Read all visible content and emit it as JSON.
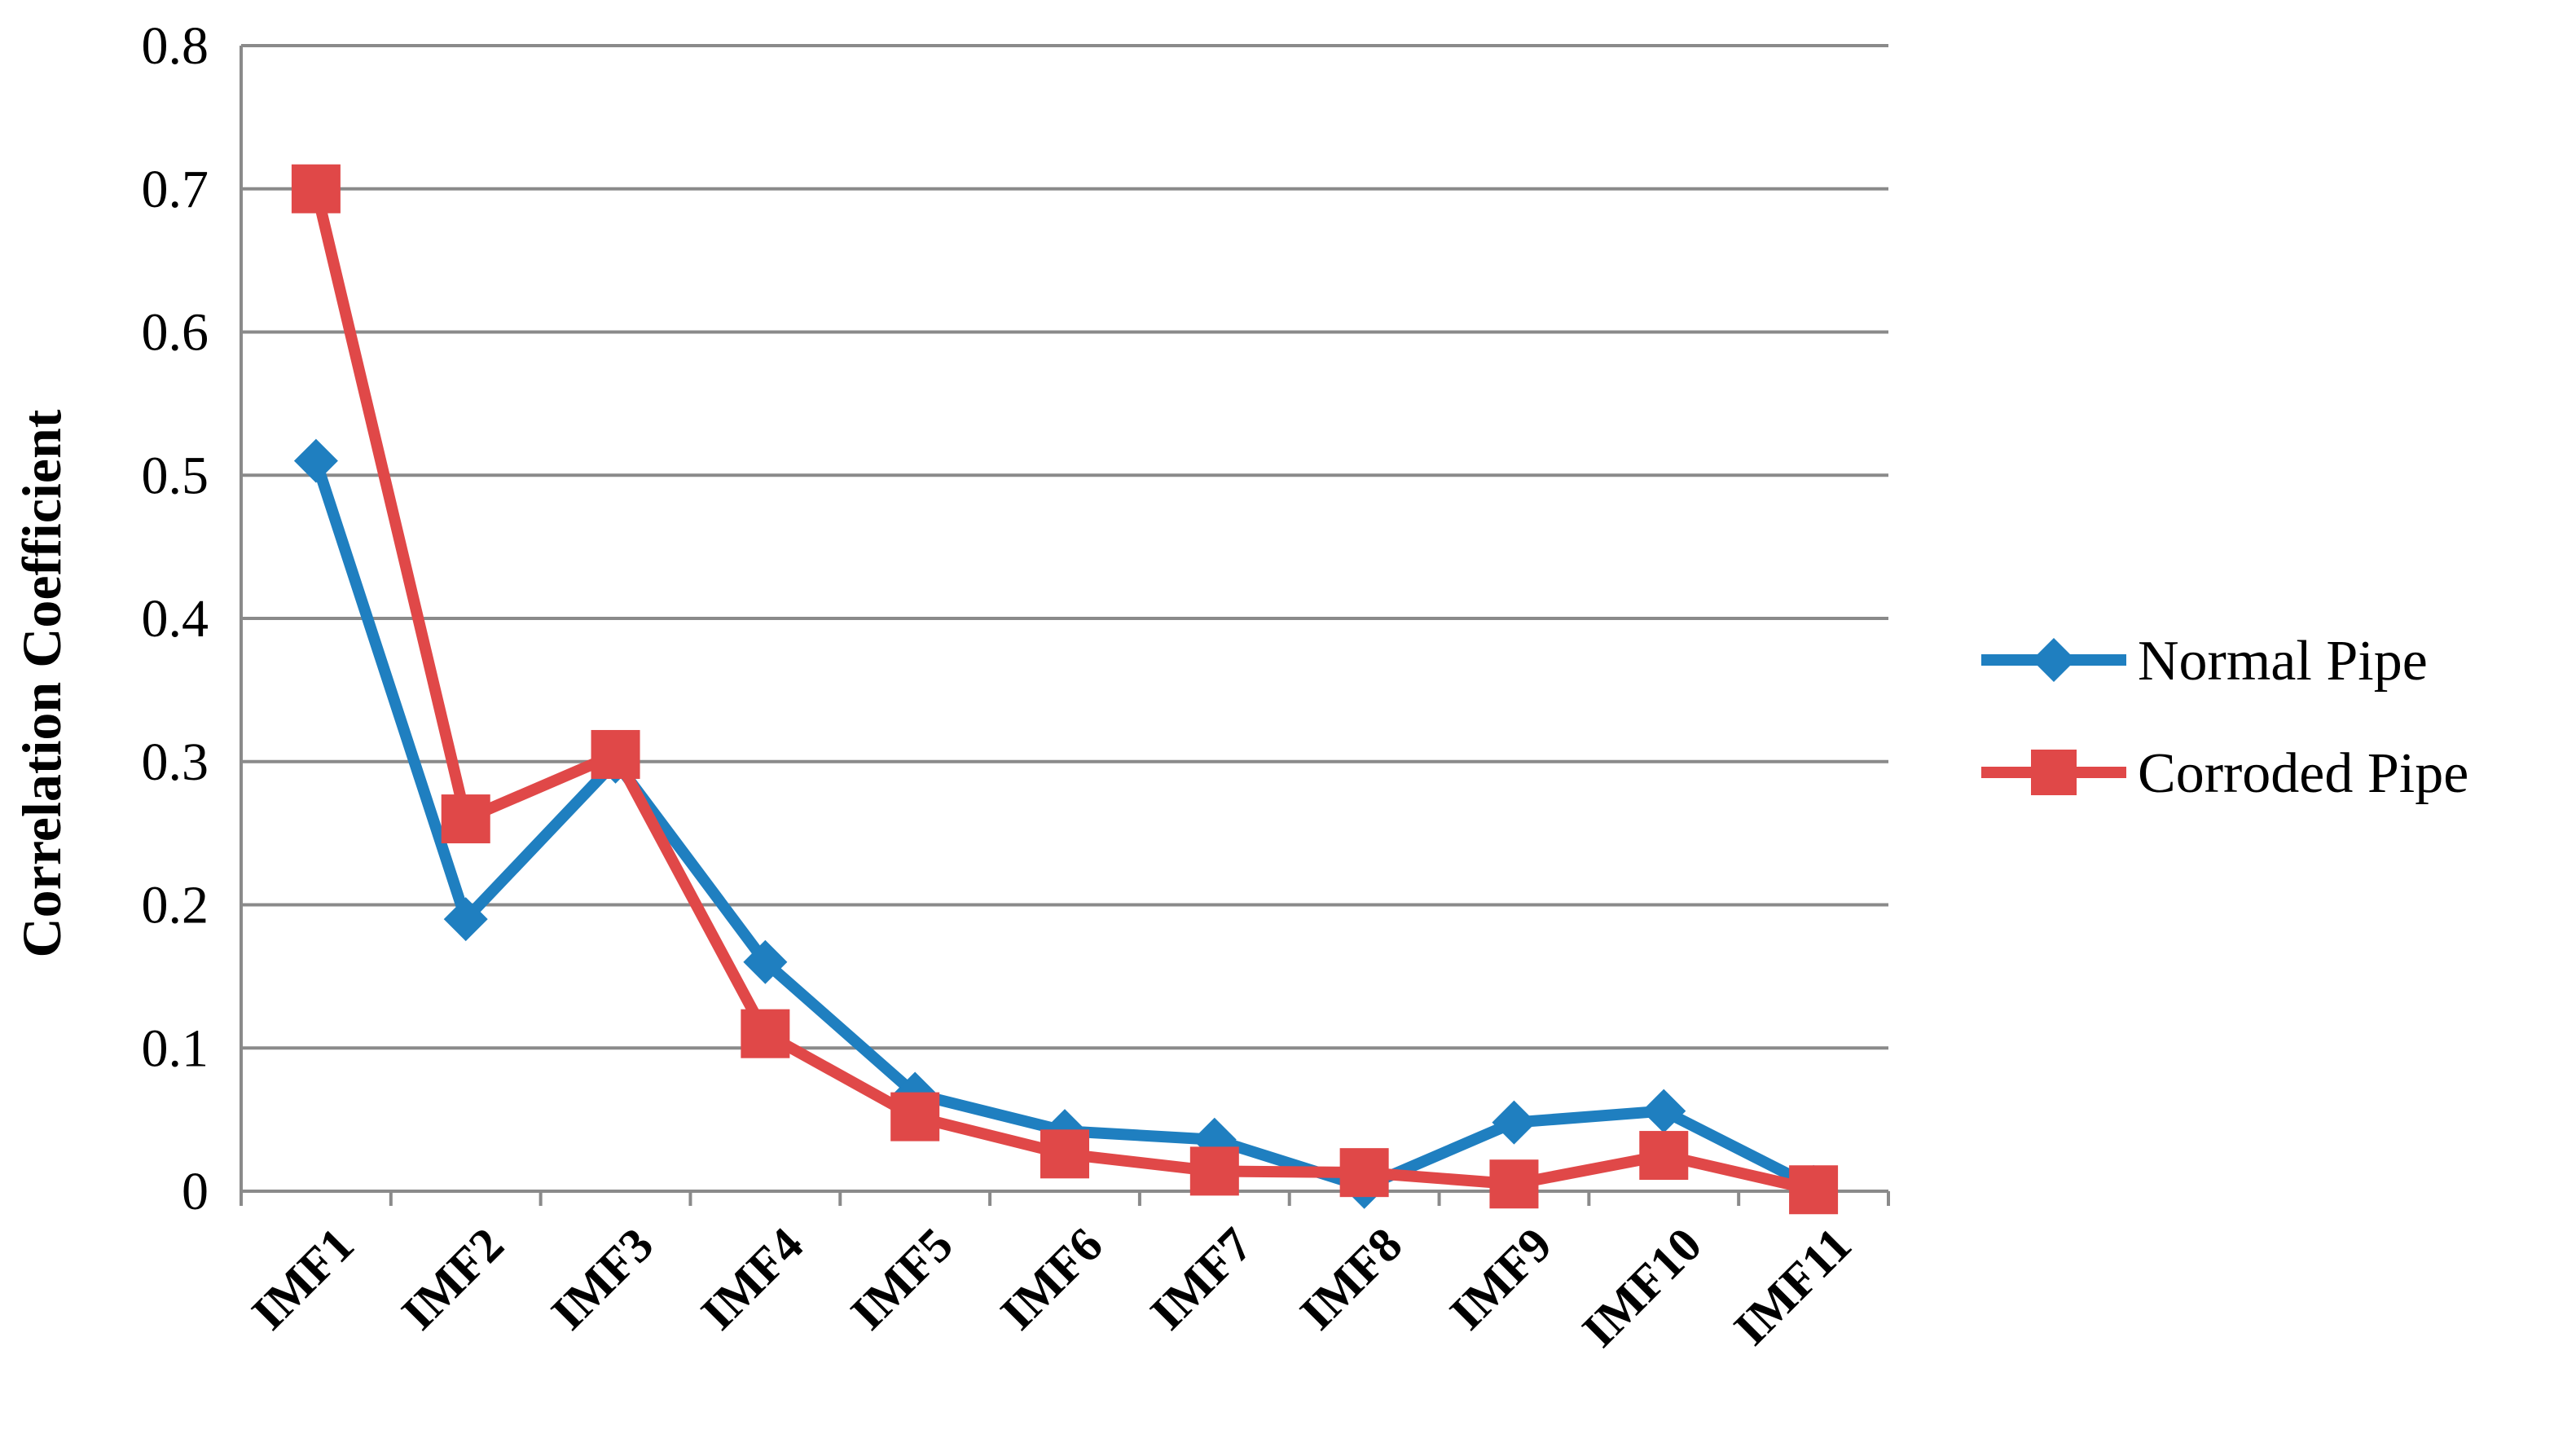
{
  "chart_data": {
    "type": "line",
    "title": "",
    "xlabel": "",
    "ylabel": "Correlation Coefficient",
    "categories": [
      "IMF1",
      "IMF2",
      "IMF3",
      "IMF4",
      "IMF5",
      "IMF6",
      "IMF7",
      "IMF8",
      "IMF9",
      "IMF10",
      "IMF11"
    ],
    "ylim": [
      0,
      0.8
    ],
    "yticks": [
      "0",
      "0.1",
      "0.2",
      "0.3",
      "0.4",
      "0.5",
      "0.6",
      "0.7",
      "0.8"
    ],
    "grid": true,
    "legend_position": "right",
    "series": [
      {
        "name": "Normal Pipe",
        "color": "#1f7fc0",
        "marker": "diamond",
        "values": [
          0.51,
          0.19,
          0.3,
          0.16,
          0.068,
          0.042,
          0.036,
          0.003,
          0.048,
          0.056,
          0.003
        ]
      },
      {
        "name": "Corroded Pipe",
        "color": "#e04848",
        "marker": "square",
        "values": [
          0.7,
          0.26,
          0.305,
          0.11,
          0.052,
          0.026,
          0.014,
          0.013,
          0.005,
          0.025,
          0.001
        ]
      }
    ]
  }
}
